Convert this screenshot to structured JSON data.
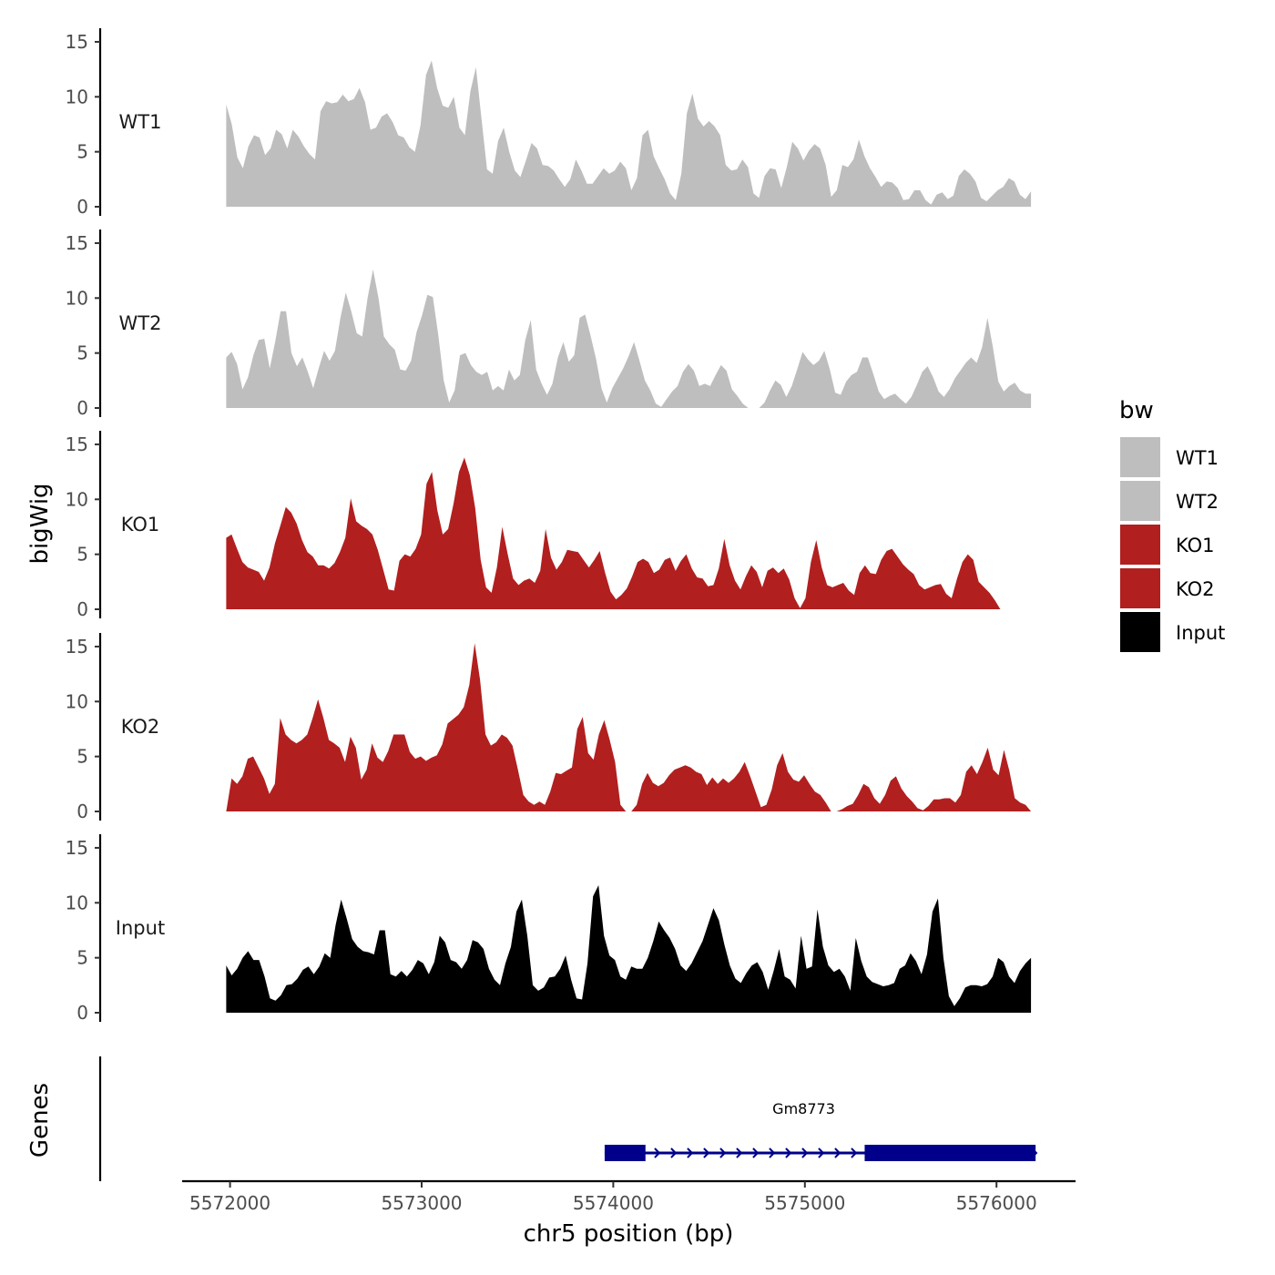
{
  "chart_data": {
    "type": "area",
    "ylabel": "bigWig",
    "xlabel": "chr5 position (bp)",
    "xlim": [
      5571520,
      5576440
    ],
    "ylim": [
      0,
      15
    ],
    "y_ticks": [
      "0",
      "5",
      "10",
      "15"
    ],
    "y_tick_values": [
      0,
      5,
      10,
      15
    ],
    "x_ticks": [
      "5572000",
      "5573000",
      "5574000",
      "5575000",
      "5576000"
    ],
    "x_tick_values": [
      5572000,
      5573000,
      5574000,
      5575000,
      5576000
    ],
    "legend": {
      "title": "bw",
      "placement": "right",
      "entries": [
        {
          "label": "WT1",
          "color": "#bebebe"
        },
        {
          "label": "WT2",
          "color": "#bebebe"
        },
        {
          "label": "KO1",
          "color": "#b21f1f"
        },
        {
          "label": "KO2",
          "color": "#b21f1f"
        },
        {
          "label": "Input",
          "color": "#000000"
        }
      ]
    },
    "series": [
      {
        "name": "WT1",
        "color": "#bebebe",
        "x_range": [
          5571980,
          5576180
        ],
        "values": [
          9.3,
          7.5,
          4.5,
          3.5,
          5.5,
          6.5,
          6.3,
          4.7,
          5.3,
          7,
          6.6,
          5.3,
          7,
          6.4,
          5.5,
          4.8,
          4.3,
          8.7,
          9.6,
          9.4,
          9.5,
          10.2,
          9.6,
          9.8,
          10.8,
          9.5,
          7,
          7.2,
          8.2,
          8.5,
          7.7,
          6.5,
          6.3,
          5.4,
          5,
          7.4,
          12,
          13.3,
          10.8,
          9.2,
          9,
          10,
          7.2,
          6.5,
          10.5,
          12.7,
          8,
          3.4,
          3,
          6,
          7.2,
          5,
          3.3,
          2.7,
          4.2,
          5.8,
          5.3,
          3.8,
          3.7,
          3.3,
          2.5,
          1.8,
          2.5,
          4.3,
          3.3,
          2.1,
          2.1,
          2.8,
          3.5,
          3,
          3.3,
          4.1,
          3.5,
          1.5,
          2.6,
          6.5,
          7,
          4.6,
          3.5,
          2.5,
          1.2,
          0.6,
          3,
          8.5,
          10.3,
          8,
          7.3,
          7.8,
          7.3,
          6.5,
          3.8,
          3.3,
          3.4,
          4.3,
          3.6,
          1.2,
          0.8,
          2.8,
          3.5,
          3.4,
          1.7,
          3.6,
          5.9,
          5.3,
          4.2,
          5.1,
          5.7,
          5.3,
          3.8,
          0.9,
          1.5,
          3.8,
          3.6,
          4.3,
          6.1,
          4.6,
          3.5,
          2.7,
          1.8,
          2.3,
          2.2,
          1.7,
          0.6,
          0.7,
          1.5,
          1.5,
          0.6,
          0.2,
          1.1,
          1.3,
          0.7,
          1,
          2.8,
          3.4,
          3,
          2.3,
          0.8,
          0.5,
          1,
          1.5,
          1.8,
          2.6,
          2.3,
          1.1,
          0.7,
          1.4
        ]
      },
      {
        "name": "WT2",
        "color": "#bebebe",
        "x_range": [
          5571980,
          5576180
        ],
        "values": [
          4.6,
          5.1,
          4,
          1.7,
          2.8,
          4.8,
          6.2,
          6.3,
          3.6,
          6,
          8.8,
          8.8,
          5,
          3.8,
          4.6,
          3.3,
          1.8,
          3.6,
          5.2,
          4.3,
          5.2,
          8.2,
          10.5,
          8.8,
          6.8,
          6.5,
          10,
          12.6,
          10,
          6.5,
          5.8,
          5.3,
          3.5,
          3.4,
          4.3,
          6.9,
          8.4,
          10.3,
          10.1,
          6.6,
          2.5,
          0.5,
          1.6,
          4.8,
          5,
          3.9,
          3.3,
          3,
          3.3,
          1.6,
          2,
          1.6,
          3.5,
          2.5,
          3,
          6.2,
          8,
          3.5,
          2.2,
          1.2,
          2.2,
          4.6,
          6,
          4.2,
          4.8,
          8.2,
          8.5,
          6.6,
          4.5,
          1.8,
          0.5,
          1.8,
          2.7,
          3.6,
          4.7,
          6,
          4.3,
          2.5,
          1.6,
          0.4,
          0.1,
          0.8,
          1.5,
          2,
          3.3,
          4,
          3.4,
          2,
          2.2,
          2,
          3,
          3.9,
          3.4,
          1.7,
          1.1,
          0.4,
          0,
          0,
          0,
          0.5,
          1.6,
          2.5,
          2.1,
          1,
          2,
          3.5,
          5.1,
          4.4,
          3.9,
          4.3,
          5.2,
          3.5,
          1.4,
          1.2,
          2.4,
          3,
          3.3,
          4.6,
          4.6,
          3.1,
          1.5,
          0.8,
          1.1,
          1.3,
          0.8,
          0.4,
          1,
          2.1,
          3.3,
          3.8,
          2.8,
          1.5,
          1,
          1.7,
          2.7,
          3.4,
          4.1,
          4.6,
          4.1,
          5.5,
          8.2,
          5.5,
          2.4,
          1.5,
          2,
          2.3,
          1.6,
          1.3,
          1.3
        ]
      },
      {
        "name": "KO1",
        "color": "#b21f1f",
        "x_range": [
          5571980,
          5576020
        ],
        "values": [
          6.5,
          6.8,
          5.5,
          4.3,
          3.8,
          3.6,
          3.4,
          2.6,
          3.8,
          6,
          7.6,
          9.3,
          8.8,
          7.8,
          6.3,
          5.2,
          4.8,
          4,
          4,
          3.7,
          4.2,
          5.2,
          6.5,
          10.1,
          8,
          7.6,
          7.3,
          6.8,
          5.4,
          3.6,
          1.8,
          1.7,
          4.4,
          5,
          4.8,
          5.5,
          6.8,
          11.4,
          12.5,
          9,
          6.8,
          7.3,
          9.6,
          12.5,
          13.8,
          12.2,
          9.2,
          4.5,
          2,
          1.5,
          3.8,
          7.5,
          5,
          2.8,
          2.2,
          2.6,
          2.8,
          2.4,
          3.5,
          7.3,
          4.7,
          3.6,
          4.3,
          5.4,
          5.3,
          5.2,
          4.5,
          3.8,
          4.5,
          5.3,
          3.3,
          1.6,
          0.9,
          1.3,
          1.9,
          3,
          4.3,
          4.6,
          4.3,
          3.3,
          3.6,
          4.5,
          4.7,
          3.5,
          4.4,
          5,
          3.7,
          2.9,
          2.8,
          2.1,
          2.2,
          3.7,
          6.4,
          4,
          2.6,
          1.8,
          3,
          4,
          3.4,
          2,
          3.5,
          3.8,
          3.3,
          3.7,
          2.7,
          1,
          0.1,
          1,
          4.3,
          6.3,
          3.8,
          2.2,
          2,
          2.2,
          2.4,
          1.7,
          1.3,
          3.3,
          4,
          3.3,
          3.2,
          4.5,
          5.3,
          5.5,
          4.8,
          4.1,
          3.6,
          3.2,
          2.2,
          1.8,
          2,
          2.2,
          2.3,
          1.4,
          1,
          2.8,
          4.3,
          5,
          4.5,
          2.5,
          2,
          1.5,
          0.8,
          0
        ]
      },
      {
        "name": "KO2",
        "color": "#b21f1f",
        "x_range": [
          5571980,
          5576180
        ],
        "values": [
          0,
          3,
          2.5,
          3.2,
          4.8,
          5,
          4,
          3,
          1.6,
          2.5,
          8.5,
          7,
          6.5,
          6.2,
          6.5,
          7,
          8.5,
          10.2,
          8.5,
          6.5,
          6.2,
          5.8,
          4.5,
          6.8,
          5.8,
          2.9,
          3.8,
          6.2,
          4.9,
          4.5,
          5.5,
          7,
          7,
          7,
          5.4,
          4.8,
          5,
          4.6,
          4.9,
          5.1,
          6.1,
          8,
          8.4,
          8.8,
          9.5,
          11.5,
          15.3,
          12,
          7,
          6,
          6.3,
          7,
          6.7,
          6,
          3.8,
          1.5,
          0.9,
          0.6,
          0.9,
          0.6,
          1.8,
          3.5,
          3.4,
          3.7,
          4,
          7.5,
          8.6,
          5.3,
          4.7,
          7,
          8.3,
          6.5,
          4.5,
          0.6,
          0,
          0,
          0.6,
          2.5,
          3.5,
          2.6,
          2.3,
          2.6,
          3.3,
          3.8,
          4,
          4.2,
          4,
          3.6,
          3.4,
          2.4,
          3.1,
          2.5,
          3,
          2.6,
          3,
          3.6,
          4.5,
          3.2,
          1.8,
          0.4,
          0.6,
          2,
          4.2,
          5.3,
          3.6,
          2.9,
          2.7,
          3.3,
          2.5,
          1.8,
          1.5,
          0.8,
          0,
          0,
          0.2,
          0.5,
          0.7,
          1.5,
          2.5,
          2.2,
          1.2,
          0.7,
          1.5,
          2.8,
          3.2,
          2.1,
          1.4,
          0.9,
          0.3,
          0.1,
          0.5,
          1.1,
          1.1,
          1.2,
          1.2,
          0.8,
          1.5,
          3.6,
          4.2,
          3.4,
          4.5,
          5.8,
          3.8,
          3.3,
          5.6,
          3.7,
          1.2,
          0.8,
          0.6,
          0
        ]
      },
      {
        "name": "Input",
        "color": "#000000",
        "x_range": [
          5571980,
          5576180
        ],
        "values": [
          4.3,
          3.4,
          4,
          5,
          5.6,
          4.8,
          4.8,
          3.3,
          1.3,
          1.1,
          1.6,
          2.5,
          2.6,
          3.1,
          3.9,
          4.2,
          3.5,
          4.2,
          5.4,
          5,
          8,
          10.3,
          8.6,
          6.7,
          6,
          5.6,
          5.5,
          5.3,
          7.5,
          7.5,
          3.5,
          3.3,
          3.8,
          3.3,
          3.9,
          4.8,
          4.5,
          3.5,
          4.6,
          7,
          6.4,
          4.8,
          4.6,
          4,
          4.8,
          6.6,
          6.4,
          5.8,
          4,
          3,
          2.5,
          4.5,
          6,
          9.2,
          10.3,
          7,
          2.5,
          2,
          2.3,
          3.2,
          3.3,
          4,
          5.2,
          3,
          1.3,
          1.2,
          4.5,
          10.6,
          11.6,
          7,
          5.2,
          4.8,
          3.3,
          3,
          4.2,
          4,
          4,
          5,
          6.5,
          8.3,
          7.5,
          6.8,
          5.8,
          4.3,
          3.8,
          4.5,
          5.5,
          6.5,
          8,
          9.5,
          8.4,
          6.2,
          4.3,
          3.1,
          2.7,
          3.6,
          4.3,
          4.6,
          3.7,
          2.1,
          3.8,
          5.8,
          3.3,
          3,
          2.2,
          7,
          4,
          4.2,
          9.4,
          6,
          4.3,
          3.7,
          4,
          3.3,
          2,
          6.8,
          4.7,
          3.3,
          2.8,
          2.6,
          2.4,
          2.5,
          2.7,
          4,
          4.3,
          5.4,
          4.7,
          3.5,
          5.3,
          9.2,
          10.4,
          5,
          1.5,
          0.6,
          1.3,
          2.3,
          2.5,
          2.5,
          2.4,
          2.6,
          3.3,
          5,
          4.6,
          3.3,
          2.7,
          3.8,
          4.5,
          5
        ]
      }
    ],
    "genes_panel": {
      "label": "Genes",
      "genes": [
        {
          "name": "Gm8773",
          "start": 5573955,
          "end": 5576204,
          "strand": "+",
          "color": "#00008b",
          "exons": [
            [
              5573955,
              5574168
            ],
            [
              5575312,
              5576204
            ]
          ]
        }
      ]
    }
  }
}
